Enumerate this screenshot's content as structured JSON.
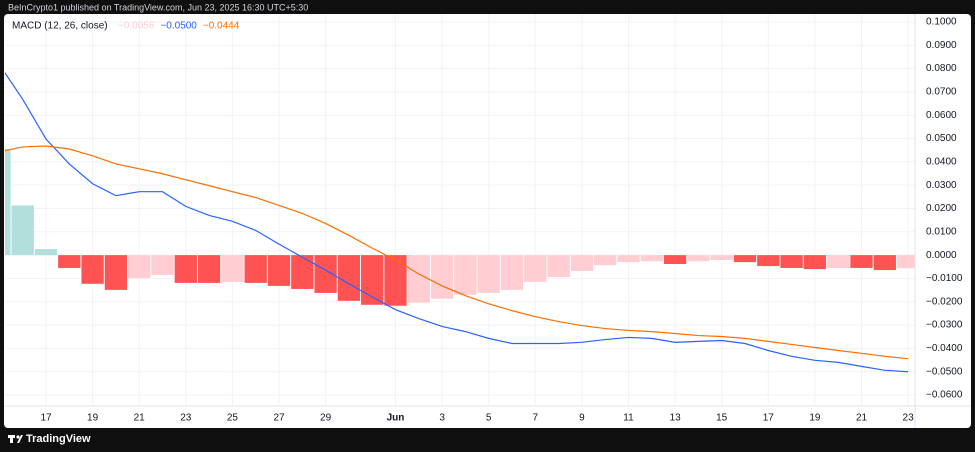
{
  "header": {
    "text": "BeInCrypto1 published on TradingView.com, Jun 23, 2025 16:30 UTC+5:30"
  },
  "footer": {
    "brand": "TradingView"
  },
  "chart_data": {
    "type": "bar",
    "indicator": "MACD (12, 26, close)",
    "categories": [
      null,
      null,
      "17",
      null,
      "19",
      null,
      "21",
      null,
      "23",
      null,
      "25",
      null,
      "27",
      null,
      "29",
      null,
      null,
      "Jun",
      null,
      "3",
      null,
      "5",
      null,
      "7",
      null,
      "9",
      null,
      "11",
      null,
      "13",
      null,
      "15",
      null,
      "17",
      null,
      "19",
      null,
      "21",
      null,
      "23"
    ],
    "ylim": [
      -0.0647,
      0.1034
    ],
    "yticks": [
      {
        "value": 0.1,
        "label": "0.1000"
      },
      {
        "value": 0.09,
        "label": "0.0900"
      },
      {
        "value": 0.08,
        "label": "0.0800"
      },
      {
        "value": 0.07,
        "label": "0.0700"
      },
      {
        "value": 0.06,
        "label": "0.0600"
      },
      {
        "value": 0.05,
        "label": "0.0500"
      },
      {
        "value": 0.04,
        "label": "0.0400"
      },
      {
        "value": 0.03,
        "label": "0.0300"
      },
      {
        "value": 0.02,
        "label": "0.0200"
      },
      {
        "value": 0.01,
        "label": "0.0100"
      },
      {
        "value": 0,
        "label": "0.0000"
      },
      {
        "value": -0.01,
        "label": "−0.0100"
      },
      {
        "value": -0.02,
        "label": "−0.0200"
      },
      {
        "value": -0.03,
        "label": "−0.0300"
      },
      {
        "value": -0.04,
        "label": "−0.0400"
      },
      {
        "value": -0.05,
        "label": "−0.0500"
      },
      {
        "value": -0.06,
        "label": "−0.0600"
      }
    ],
    "grid": true,
    "series": [
      {
        "type": "bar",
        "color": "#ffcdd2",
        "last_value_label": "−0.0056",
        "colors": [
          "#b2dfdb",
          "#b2dfdb",
          "#b2dfdb",
          "#ff5252",
          "#ff5252",
          "#ff5252",
          "#ffcdd2",
          "#ffcdd2",
          "#ff5252",
          "#ff5252",
          "#ffcdd2",
          "#ff5252",
          "#ff5252",
          "#ff5252",
          "#ff5252",
          "#ff5252",
          "#ff5252",
          "#ff5252",
          "#ffcdd2",
          "#ffcdd2",
          "#ffcdd2",
          "#ffcdd2",
          "#ffcdd2",
          "#ffcdd2",
          "#ffcdd2",
          "#ffcdd2",
          "#ffcdd2",
          "#ffcdd2",
          "#ffcdd2",
          "#ff5252",
          "#ffcdd2",
          "#ffcdd2",
          "#ff5252",
          "#ff5252",
          "#ff5252",
          "#ff5252",
          "#ffcdd2",
          "#ff5252",
          "#ff5252",
          "#ffcdd2"
        ],
        "values": [
          0.0455,
          0.0213,
          0.0026,
          -0.0055,
          -0.0123,
          -0.0149,
          -0.0098,
          -0.0085,
          -0.0119,
          -0.0119,
          -0.0115,
          -0.0119,
          -0.0132,
          -0.0145,
          -0.0162,
          -0.0196,
          -0.0213,
          -0.0217,
          -0.0204,
          -0.0187,
          -0.017,
          -0.0162,
          -0.0149,
          -0.0115,
          -0.0094,
          -0.0068,
          -0.0043,
          -0.003,
          -0.0026,
          -0.0038,
          -0.0026,
          -0.0021,
          -0.003,
          -0.0047,
          -0.0055,
          -0.006,
          -0.0055,
          -0.0055,
          -0.0064,
          -0.0056
        ]
      },
      {
        "type": "line",
        "color": "#2962ff",
        "last_value_label": "−0.0500",
        "values": [
          0.0817,
          0.0668,
          0.0498,
          0.0391,
          0.0306,
          0.0255,
          0.0272,
          0.0272,
          0.0209,
          0.017,
          0.0145,
          0.0106,
          0.0047,
          -0.0009,
          -0.0064,
          -0.0123,
          -0.0179,
          -0.0234,
          -0.0272,
          -0.0306,
          -0.0328,
          -0.0357,
          -0.0379,
          -0.0379,
          -0.0379,
          -0.0374,
          -0.0362,
          -0.0353,
          -0.0357,
          -0.0374,
          -0.037,
          -0.0366,
          -0.0379,
          -0.0409,
          -0.0434,
          -0.0451,
          -0.046,
          -0.0477,
          -0.0494,
          -0.05
        ]
      },
      {
        "type": "line",
        "color": "#ff6d00",
        "last_value_label": "−0.0444",
        "values": [
          0.0443,
          0.0464,
          0.0468,
          0.0455,
          0.0426,
          0.0391,
          0.037,
          0.0349,
          0.0323,
          0.0298,
          0.0272,
          0.0247,
          0.0213,
          0.0179,
          0.0136,
          0.0085,
          0.003,
          -0.0021,
          -0.0081,
          -0.0132,
          -0.0174,
          -0.0209,
          -0.0238,
          -0.0264,
          -0.0285,
          -0.0302,
          -0.0315,
          -0.0323,
          -0.0328,
          -0.0336,
          -0.0345,
          -0.0349,
          -0.0357,
          -0.037,
          -0.0383,
          -0.0396,
          -0.0409,
          -0.0421,
          -0.0434,
          -0.0444
        ]
      }
    ]
  }
}
